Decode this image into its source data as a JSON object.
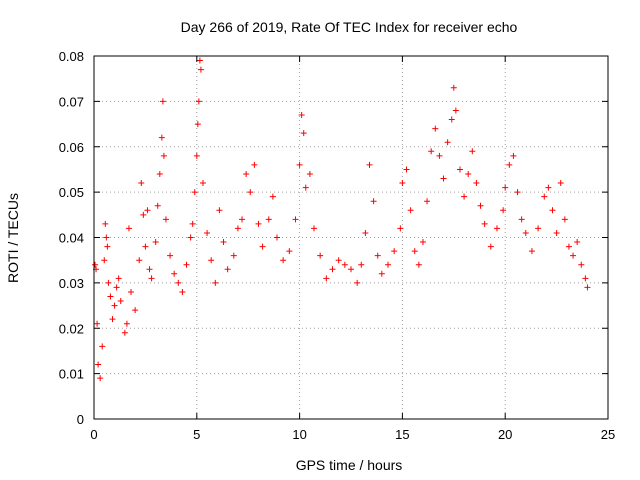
{
  "chart_data": {
    "type": "scatter",
    "title": "Day 266 of 2019, Rate Of TEC Index for receiver echo",
    "xlabel": "GPS time / hours",
    "ylabel": "ROTI / TECUs",
    "xlim": [
      0,
      25
    ],
    "ylim": [
      0,
      0.08
    ],
    "x_ticks": [
      0,
      5,
      10,
      15,
      20,
      25
    ],
    "x_tick_labels": [
      "0",
      "5",
      "10",
      "15",
      "20",
      "25"
    ],
    "y_ticks": [
      0,
      0.01,
      0.02,
      0.03,
      0.04,
      0.05,
      0.06,
      0.07,
      0.08
    ],
    "y_tick_labels": [
      "0",
      "0.01",
      "0.02",
      "0.03",
      "0.04",
      "0.05",
      "0.06",
      "0.07",
      "0.08"
    ],
    "grid": true,
    "marker": "plus",
    "color": "#ff0000",
    "series": [
      {
        "values_desc": "",
        "points": [
          [
            0.05,
            0.034
          ],
          [
            0.1,
            0.033
          ],
          [
            0.15,
            0.021
          ],
          [
            0.2,
            0.012
          ],
          [
            0.3,
            0.009
          ],
          [
            0.4,
            0.016
          ],
          [
            0.5,
            0.035
          ],
          [
            0.55,
            0.043
          ],
          [
            0.6,
            0.04
          ],
          [
            0.65,
            0.038
          ],
          [
            0.7,
            0.03
          ],
          [
            0.8,
            0.027
          ],
          [
            0.9,
            0.022
          ],
          [
            1.0,
            0.025
          ],
          [
            1.1,
            0.029
          ],
          [
            1.2,
            0.031
          ],
          [
            1.3,
            0.026
          ],
          [
            1.5,
            0.019
          ],
          [
            1.6,
            0.021
          ],
          [
            1.7,
            0.042
          ],
          [
            1.8,
            0.028
          ],
          [
            2.0,
            0.024
          ],
          [
            2.2,
            0.035
          ],
          [
            2.3,
            0.052
          ],
          [
            2.4,
            0.045
          ],
          [
            2.5,
            0.038
          ],
          [
            2.6,
            0.046
          ],
          [
            2.7,
            0.033
          ],
          [
            2.8,
            0.031
          ],
          [
            3.0,
            0.039
          ],
          [
            3.1,
            0.047
          ],
          [
            3.2,
            0.054
          ],
          [
            3.3,
            0.062
          ],
          [
            3.35,
            0.07
          ],
          [
            3.4,
            0.058
          ],
          [
            3.5,
            0.044
          ],
          [
            3.7,
            0.036
          ],
          [
            3.9,
            0.032
          ],
          [
            4.1,
            0.03
          ],
          [
            4.3,
            0.028
          ],
          [
            4.5,
            0.034
          ],
          [
            4.7,
            0.04
          ],
          [
            4.8,
            0.043
          ],
          [
            4.9,
            0.05
          ],
          [
            5.0,
            0.058
          ],
          [
            5.05,
            0.065
          ],
          [
            5.1,
            0.07
          ],
          [
            5.15,
            0.079
          ],
          [
            5.2,
            0.077
          ],
          [
            5.3,
            0.052
          ],
          [
            5.5,
            0.041
          ],
          [
            5.7,
            0.035
          ],
          [
            5.9,
            0.03
          ],
          [
            6.1,
            0.046
          ],
          [
            6.3,
            0.039
          ],
          [
            6.5,
            0.033
          ],
          [
            6.8,
            0.036
          ],
          [
            7.0,
            0.042
          ],
          [
            7.2,
            0.044
          ],
          [
            7.4,
            0.054
          ],
          [
            7.6,
            0.05
          ],
          [
            7.8,
            0.056
          ],
          [
            8.0,
            0.043
          ],
          [
            8.2,
            0.038
          ],
          [
            8.5,
            0.044
          ],
          [
            8.7,
            0.049
          ],
          [
            8.9,
            0.04
          ],
          [
            9.2,
            0.035
          ],
          [
            9.5,
            0.037
          ],
          [
            9.8,
            0.044
          ],
          [
            10.0,
            0.056
          ],
          [
            10.1,
            0.067
          ],
          [
            10.2,
            0.063
          ],
          [
            10.3,
            0.051
          ],
          [
            10.5,
            0.054
          ],
          [
            10.7,
            0.042
          ],
          [
            11.0,
            0.036
          ],
          [
            11.3,
            0.031
          ],
          [
            11.6,
            0.033
          ],
          [
            11.9,
            0.035
          ],
          [
            12.2,
            0.034
          ],
          [
            12.5,
            0.033
          ],
          [
            12.8,
            0.03
          ],
          [
            13.0,
            0.034
          ],
          [
            13.2,
            0.041
          ],
          [
            13.4,
            0.056
          ],
          [
            13.6,
            0.048
          ],
          [
            13.8,
            0.036
          ],
          [
            14.0,
            0.032
          ],
          [
            14.3,
            0.034
          ],
          [
            14.6,
            0.037
          ],
          [
            14.9,
            0.042
          ],
          [
            15.0,
            0.052
          ],
          [
            15.2,
            0.055
          ],
          [
            15.4,
            0.046
          ],
          [
            15.6,
            0.037
          ],
          [
            15.8,
            0.034
          ],
          [
            16.0,
            0.039
          ],
          [
            16.2,
            0.048
          ],
          [
            16.4,
            0.059
          ],
          [
            16.6,
            0.064
          ],
          [
            16.8,
            0.058
          ],
          [
            17.0,
            0.053
          ],
          [
            17.2,
            0.061
          ],
          [
            17.4,
            0.066
          ],
          [
            17.5,
            0.073
          ],
          [
            17.6,
            0.068
          ],
          [
            17.8,
            0.055
          ],
          [
            18.0,
            0.049
          ],
          [
            18.2,
            0.054
          ],
          [
            18.4,
            0.059
          ],
          [
            18.6,
            0.052
          ],
          [
            18.8,
            0.047
          ],
          [
            19.0,
            0.043
          ],
          [
            19.3,
            0.038
          ],
          [
            19.6,
            0.042
          ],
          [
            19.9,
            0.046
          ],
          [
            20.0,
            0.051
          ],
          [
            20.2,
            0.056
          ],
          [
            20.4,
            0.058
          ],
          [
            20.6,
            0.05
          ],
          [
            20.8,
            0.044
          ],
          [
            21.0,
            0.041
          ],
          [
            21.3,
            0.037
          ],
          [
            21.6,
            0.042
          ],
          [
            21.9,
            0.049
          ],
          [
            22.1,
            0.051
          ],
          [
            22.3,
            0.046
          ],
          [
            22.5,
            0.041
          ],
          [
            22.7,
            0.052
          ],
          [
            22.9,
            0.044
          ],
          [
            23.1,
            0.038
          ],
          [
            23.3,
            0.036
          ],
          [
            23.5,
            0.039
          ],
          [
            23.7,
            0.034
          ],
          [
            23.9,
            0.031
          ],
          [
            24.0,
            0.029
          ]
        ]
      }
    ]
  }
}
